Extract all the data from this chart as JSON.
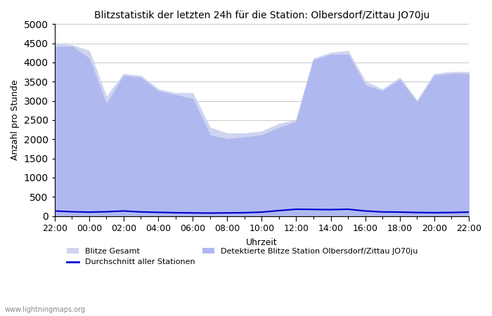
{
  "title": "Blitzstatistik der letzten 24h für die Station: Olbersdorf/Zittau JO70ju",
  "ylabel": "Anzahl pro Stunde",
  "xlabel": "Uhrzeit",
  "watermark": "www.lightningmaps.org",
  "ylim": [
    0,
    5000
  ],
  "yticks": [
    0,
    500,
    1000,
    1500,
    2000,
    2500,
    3000,
    3500,
    4000,
    4500,
    5000
  ],
  "xtick_labels": [
    "22:00",
    "00:00",
    "02:00",
    "04:00",
    "06:00",
    "08:00",
    "10:00",
    "12:00",
    "14:00",
    "16:00",
    "18:00",
    "20:00",
    "22:00"
  ],
  "bg_color": "#ffffff",
  "grid_color": "#cccccc",
  "fill_gesamt_color": "#d0d4f0",
  "fill_station_color": "#b0b8f0",
  "line_avg_color": "#0000cc",
  "legend": {
    "blitze_gesamt": "Blitze Gesamt",
    "detektierte": "Detektierte Blitze Station Olbersdorf/Zittau JO70ju",
    "durchschnitt": "Durchschnitt aller Stationen"
  },
  "x_indices": [
    0,
    1,
    2,
    3,
    4,
    5,
    6,
    7,
    8,
    9,
    10,
    11,
    12,
    13,
    14,
    15,
    16,
    17,
    18,
    19,
    20,
    21,
    22,
    23,
    24
  ],
  "blitze_gesamt": [
    4500,
    4450,
    4300,
    3100,
    3700,
    3650,
    3300,
    3200,
    3200,
    2300,
    2150,
    2150,
    2200,
    2400,
    2500,
    4100,
    4250,
    4300,
    3500,
    3300,
    3600,
    3000,
    3700,
    3750,
    3750
  ],
  "detektierte_blitze": [
    4400,
    4420,
    4100,
    2900,
    3650,
    3600,
    3250,
    3150,
    3050,
    2100,
    2000,
    2050,
    2100,
    2300,
    2450,
    4050,
    4200,
    4200,
    3400,
    3250,
    3550,
    2950,
    3650,
    3700,
    3700
  ],
  "durchschnitt_alle": [
    130,
    110,
    100,
    110,
    130,
    105,
    95,
    85,
    80,
    75,
    80,
    85,
    100,
    140,
    175,
    170,
    165,
    175,
    130,
    105,
    100,
    90,
    85,
    90,
    100
  ]
}
